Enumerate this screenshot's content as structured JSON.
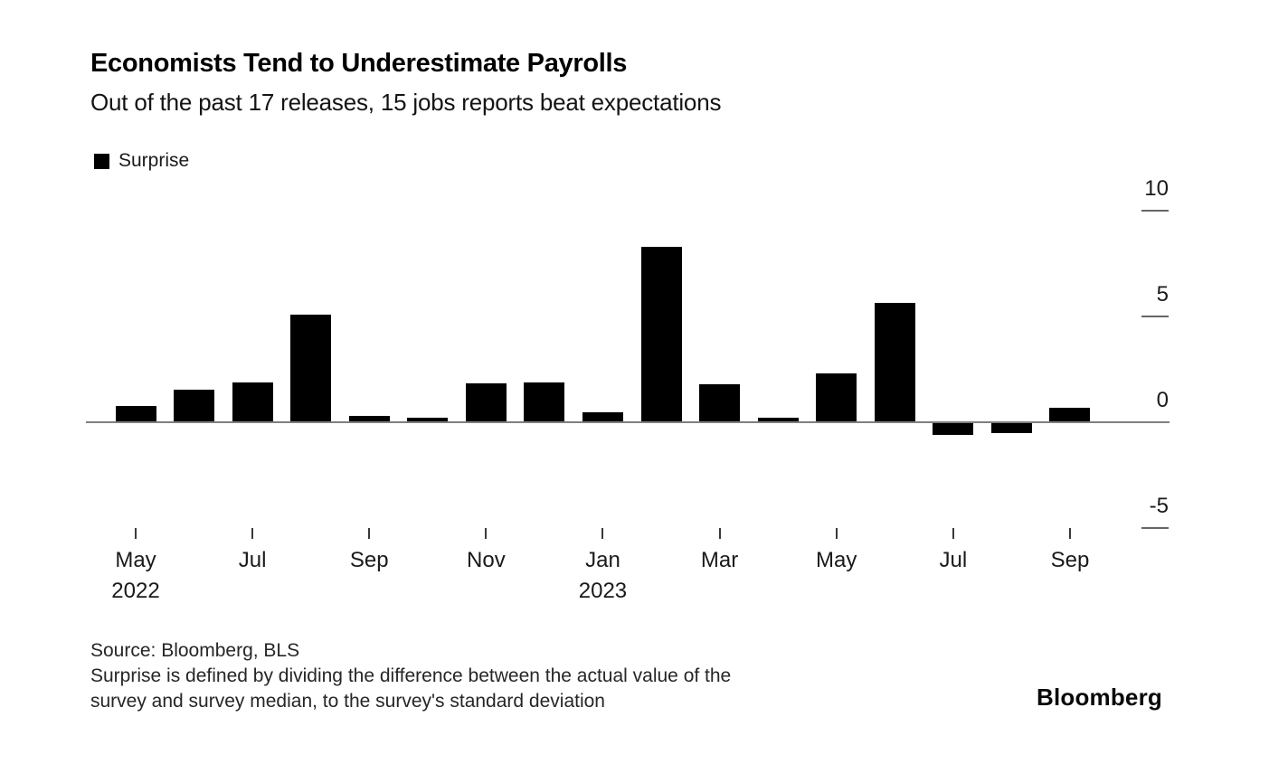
{
  "header": {
    "title": "Economists Tend to Underestimate Payrolls",
    "subtitle": "Out of the past 17 releases, 15 jobs reports beat expectations"
  },
  "legend": {
    "label": "Surprise",
    "swatch_color": "#000000"
  },
  "chart_data": {
    "type": "bar",
    "title": "Economists Tend to Underestimate Payrolls",
    "subtitle": "Out of the past 17 releases, 15 jobs reports beat expectations",
    "series_name": "Surprise",
    "categories": [
      "May 2022",
      "Jun 2022",
      "Jul 2022",
      "Aug 2022",
      "Sep 2022",
      "Oct 2022",
      "Nov 2022",
      "Dec 2022",
      "Jan 2023",
      "Feb 2023",
      "Mar 2023",
      "Apr 2023",
      "May 2023",
      "Jun 2023",
      "Jul 2023",
      "Aug 2023",
      "Sep 2023"
    ],
    "values": [
      0.75,
      1.55,
      1.9,
      5.1,
      0.3,
      0.2,
      1.85,
      1.9,
      0.45,
      8.3,
      1.8,
      0.2,
      2.3,
      5.65,
      -0.6,
      -0.5,
      0.7
    ],
    "bar_color": "#000000",
    "x_tick_labels": [
      {
        "index": 0,
        "label": "May",
        "year": "2022"
      },
      {
        "index": 2,
        "label": "Jul"
      },
      {
        "index": 4,
        "label": "Sep"
      },
      {
        "index": 6,
        "label": "Nov"
      },
      {
        "index": 8,
        "label": "Jan",
        "year": "2023"
      },
      {
        "index": 10,
        "label": "Mar"
      },
      {
        "index": 12,
        "label": "May"
      },
      {
        "index": 14,
        "label": "Jul"
      },
      {
        "index": 16,
        "label": "Sep"
      }
    ],
    "y_ticks": [
      "10",
      "5",
      "0",
      "-5"
    ],
    "y_tick_values": [
      10,
      5,
      0,
      -5
    ],
    "ylim": [
      -6.5,
      11
    ],
    "y_axis_side": "right",
    "grid": false,
    "legend_position": "top-left",
    "axis_line_color": "#7f7f7f"
  },
  "footer": {
    "source": "Source: Bloomberg, BLS",
    "note_line1": "Surprise is defined by dividing the difference between the actual value of the",
    "note_line2": "survey and survey median, to the survey's standard deviation",
    "brand": "Bloomberg"
  }
}
